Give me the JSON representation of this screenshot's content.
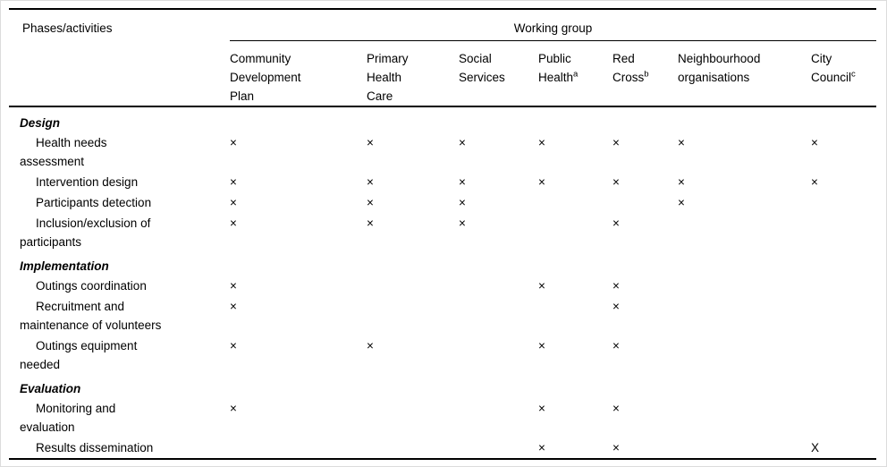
{
  "table": {
    "col1_header": "Phases/activities",
    "group_header": "Working group",
    "mark_glyph": "×",
    "columns": [
      {
        "id": "community-development-plan",
        "lines": [
          "Community",
          "Development",
          "Plan"
        ],
        "sup": ""
      },
      {
        "id": "primary-health-care",
        "lines": [
          "Primary",
          "Health",
          "Care"
        ],
        "sup": ""
      },
      {
        "id": "social-services",
        "lines": [
          "Social",
          "Services"
        ],
        "sup": ""
      },
      {
        "id": "public-health",
        "lines": [
          "Public",
          "Health"
        ],
        "sup": "a"
      },
      {
        "id": "red-cross",
        "lines": [
          "Red",
          "Cross"
        ],
        "sup": "b"
      },
      {
        "id": "neighbourhood-organisations",
        "lines": [
          "Neighbourhood",
          "organisations"
        ],
        "sup": ""
      },
      {
        "id": "city-council",
        "lines": [
          "City",
          "Council"
        ],
        "sup": "c"
      }
    ],
    "sections": [
      {
        "title": "Design",
        "rows": [
          {
            "label_lines": [
              "Health needs",
              "assessment"
            ],
            "marks": [
              "×",
              "×",
              "×",
              "×",
              "×",
              "×",
              "×"
            ]
          },
          {
            "label_lines": [
              "Intervention design"
            ],
            "marks": [
              "×",
              "×",
              "×",
              "×",
              "×",
              "×",
              "×"
            ]
          },
          {
            "label_lines": [
              "Participants detection"
            ],
            "marks": [
              "×",
              "×",
              "×",
              "",
              "",
              "×",
              ""
            ]
          },
          {
            "label_lines": [
              "Inclusion/exclusion of",
              "participants"
            ],
            "marks": [
              "×",
              "×",
              "×",
              "",
              "×",
              "",
              ""
            ]
          }
        ]
      },
      {
        "title": "Implementation",
        "rows": [
          {
            "label_lines": [
              "Outings coordination"
            ],
            "marks": [
              "×",
              "",
              "",
              "×",
              "×",
              "",
              ""
            ]
          },
          {
            "label_lines": [
              "Recruitment and",
              "maintenance of volunteers"
            ],
            "marks": [
              "×",
              "",
              "",
              "",
              "×",
              "",
              ""
            ]
          },
          {
            "label_lines": [
              "Outings equipment",
              "needed"
            ],
            "marks": [
              "×",
              "×",
              "",
              "×",
              "×",
              "",
              ""
            ]
          }
        ]
      },
      {
        "title": "Evaluation",
        "rows": [
          {
            "label_lines": [
              "Monitoring and",
              "evaluation"
            ],
            "marks": [
              "×",
              "",
              "",
              "×",
              "×",
              "",
              ""
            ]
          },
          {
            "label_lines": [
              "Results dissemination"
            ],
            "marks": [
              "",
              "",
              "",
              "×",
              "×",
              "",
              "X"
            ]
          }
        ]
      }
    ]
  }
}
